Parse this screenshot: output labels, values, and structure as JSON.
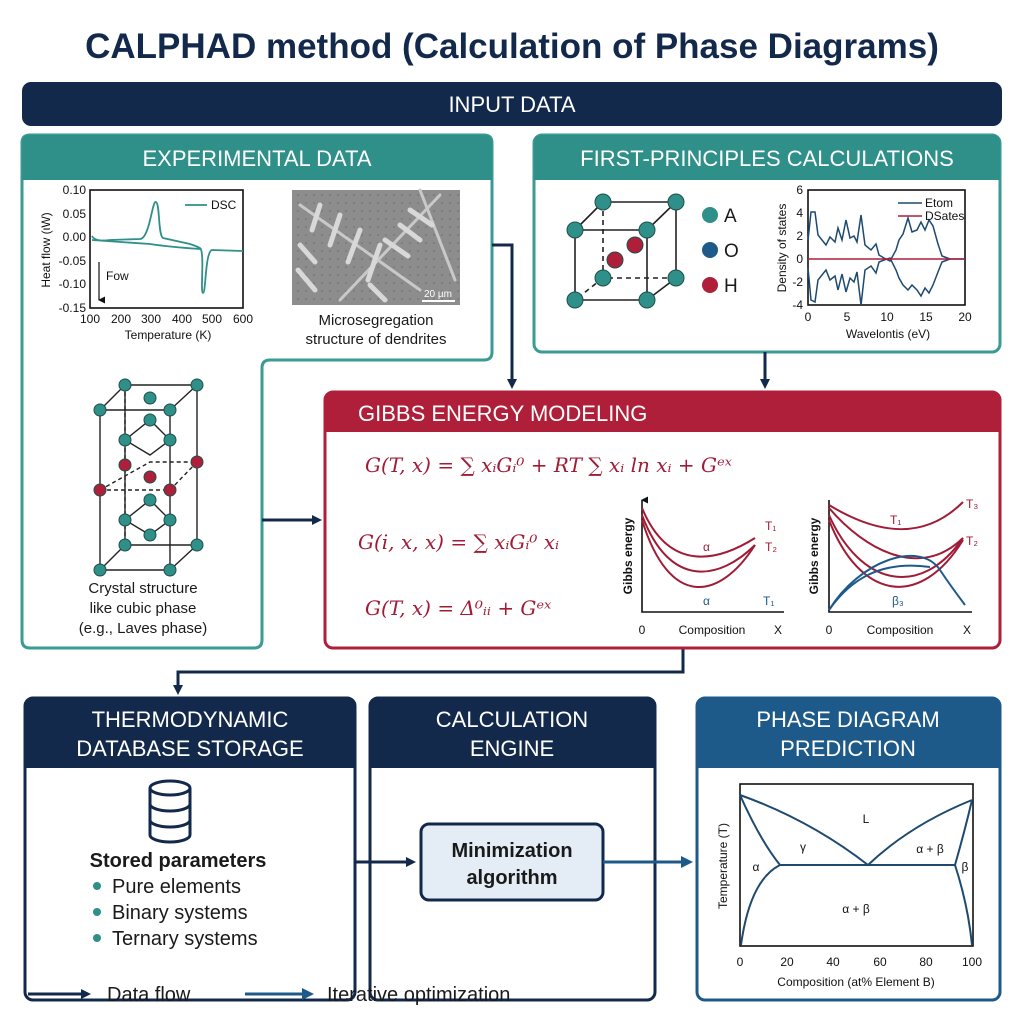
{
  "title": "CALPHAD method (Calculation of Phase Diagrams)",
  "colors": {
    "navy": "#13294b",
    "teal": "#2f8f89",
    "red": "#b01f3a",
    "blue": "#1d5a8a"
  },
  "input_bar": "INPUT DATA",
  "experimental": {
    "header": "EXPERIMENTAL DATA",
    "dsc": {
      "ylabel": "Heat flow (ιW)",
      "xlabel": "Temperature (K)",
      "legend": "DSC",
      "annotation": "Fow",
      "yticks": [
        "0.10",
        "0.05",
        "0.00",
        "-0.05",
        "-0.10",
        "-0.15"
      ],
      "xticks": [
        "100",
        "200",
        "300",
        "400",
        "500",
        "600"
      ]
    },
    "micrograph": {
      "scale": "20 µm",
      "caption1": "Microsegregation",
      "caption2": "structure of dendrites"
    },
    "crystal": {
      "caption1": "Crystal structure",
      "caption2": "like cubic phase",
      "caption3": "(e.g., Laves phase)"
    }
  },
  "first_principles": {
    "header": "FIRST-PRINCIPLES CALCULATIONS",
    "legend": [
      {
        "label": "A",
        "color": "#2f8f89"
      },
      {
        "label": "O",
        "color": "#1d5a8a"
      },
      {
        "label": "H",
        "color": "#b01f3a"
      }
    ],
    "dos": {
      "ylabel": "Density of states",
      "xlabel": "Wavelontis (eV)",
      "legend": [
        "Etom",
        "DSates"
      ],
      "yticks": [
        "6",
        "4",
        "2",
        "0",
        "-2",
        "-4"
      ],
      "xticks": [
        "0",
        "5",
        "10",
        "15",
        "20"
      ]
    }
  },
  "gibbs": {
    "header": "GIBBS ENERGY MODELING",
    "equations": [
      "G(T, x) = ∑ xᵢGᵢ⁰ + RT ∑ xᵢ ln xᵢ + Gᵉˣ",
      "G(i, x, x) = ∑ xᵢGᵢ⁰ xᵢ",
      "G(T, x) = Δ⁰ᵢᵢ + Gᵉˣ"
    ],
    "plot1": {
      "ylabel": "Gibbs energy",
      "xlabel": "Composition",
      "x0": "0",
      "xend": "X",
      "labels": [
        "T₁",
        "T₂",
        "α",
        "α",
        "T₁"
      ]
    },
    "plot2": {
      "ylabel": "Gibbs energy",
      "xlabel": "Composition",
      "x0": "0",
      "xend": "X",
      "labels": [
        "T₁",
        "T₃",
        "T₂",
        "β₃"
      ]
    }
  },
  "database": {
    "header1": "THERMODYNAMIC",
    "header2": "DATABASE STORAGE",
    "icon": "database-icon",
    "stored_title": "Stored parameters",
    "items": [
      "Pure elements",
      "Binary systems",
      "Ternary systems"
    ]
  },
  "engine": {
    "header1": "CALCULATION",
    "header2": "ENGINE",
    "box1": "Minimization",
    "box2": "algorithm"
  },
  "phase": {
    "header1": "PHASE DIAGRAM",
    "header2": "PREDICTION",
    "ylabel": "Temperature (T)",
    "xlabel": "Composition (at% Element B)",
    "xticks": [
      "0",
      "20",
      "40",
      "60",
      "80",
      "100"
    ],
    "regions": [
      "L",
      "γ",
      "α + β",
      "α",
      "β",
      "α + β"
    ]
  },
  "legend": {
    "data_flow": "Data flow",
    "iterative": "Iterative optimization"
  }
}
